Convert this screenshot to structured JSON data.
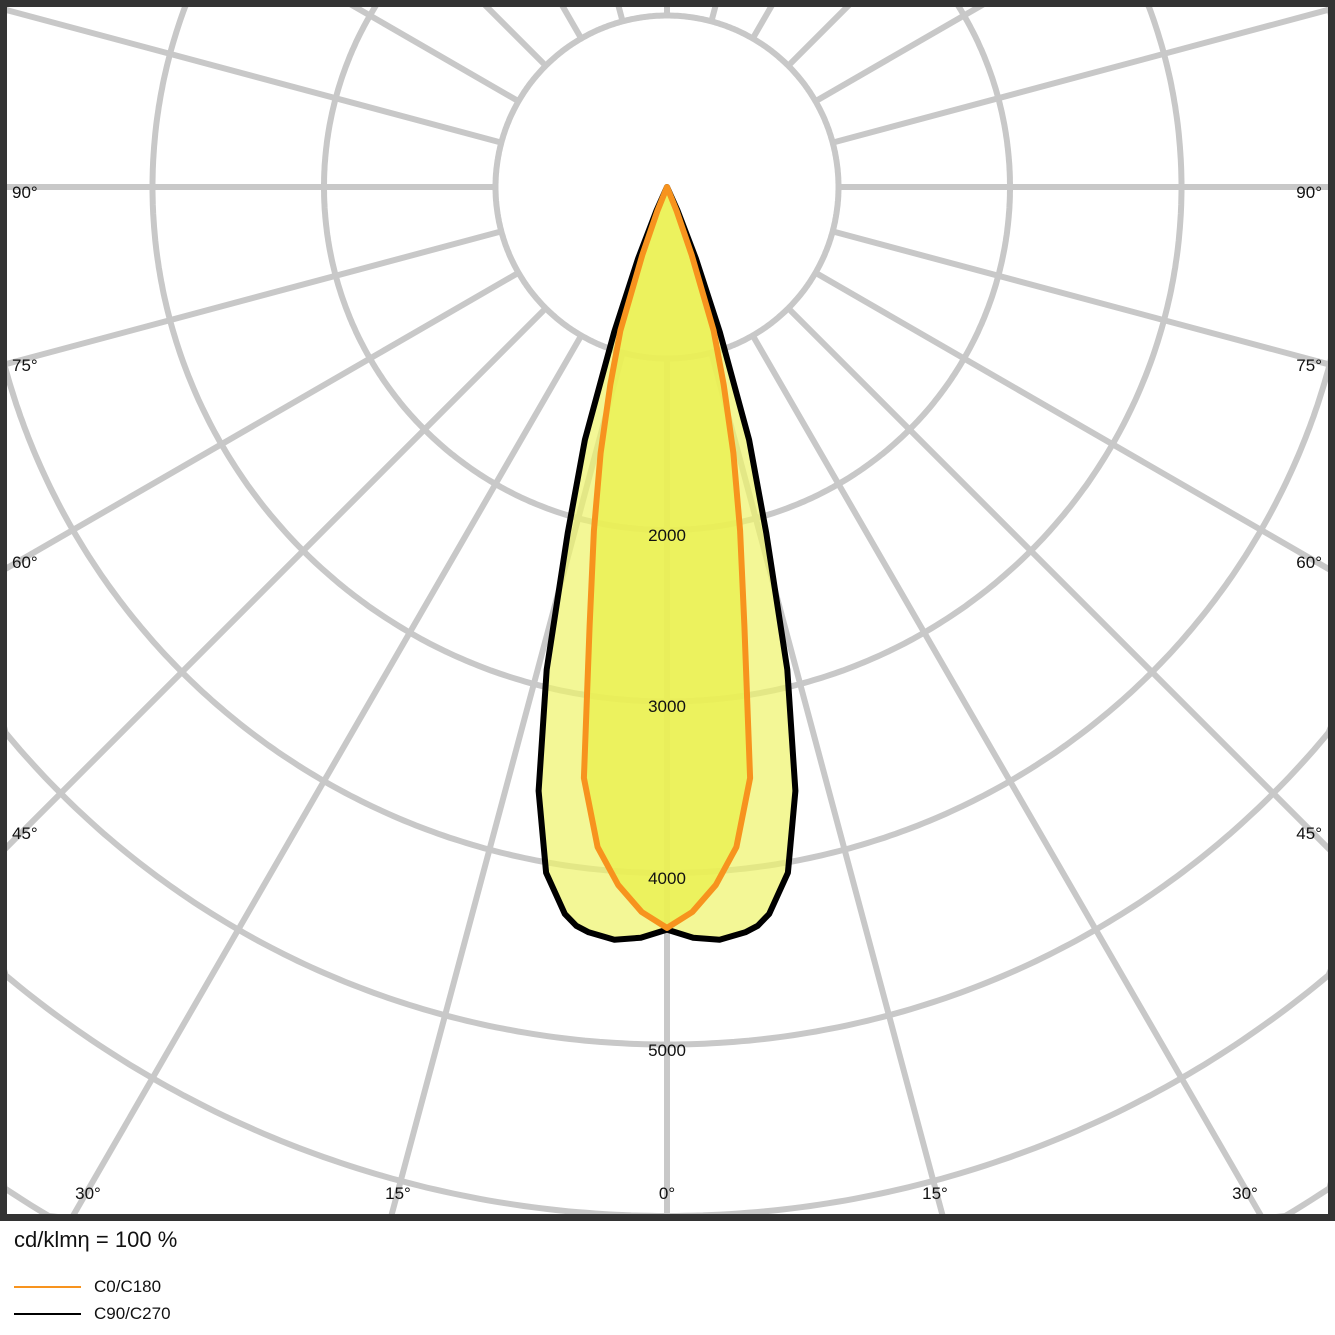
{
  "chart_data": {
    "type": "polar",
    "unit_label": "cd/klmη = 100 %",
    "radial_ticks": [
      1000,
      2000,
      3000,
      4000,
      5000
    ],
    "radial_tick_labels": [
      "2000",
      "3000",
      "4000",
      "5000"
    ],
    "angle_labels_side": [
      "90°",
      "75°",
      "60°",
      "45°"
    ],
    "angle_labels_bottom": [
      "30°",
      "15°",
      "0°",
      "15°",
      "30°"
    ],
    "grid": true,
    "legend_position": "bottom-left",
    "series": [
      {
        "name": "C0/C180",
        "color": "#f7931e",
        "fill": "#eaf050",
        "angles": [
          0,
          2,
          4,
          6,
          8,
          10,
          12,
          14,
          16,
          18,
          20,
          22,
          24
        ],
        "values": [
          4320,
          4230,
          4080,
          3870,
          3480,
          2600,
          2050,
          1600,
          1200,
          880,
          420,
          150,
          0
        ]
      },
      {
        "name": "C90/C270",
        "color": "#000000",
        "fill": "#eef36a",
        "angles": [
          0,
          2,
          4,
          6,
          7,
          8,
          10,
          12,
          14,
          16,
          18,
          20,
          22,
          24,
          26
        ],
        "values": [
          4330,
          4380,
          4400,
          4370,
          4340,
          4280,
          4060,
          3600,
          2900,
          2100,
          1550,
          900,
          450,
          150,
          0
        ]
      }
    ]
  }
}
